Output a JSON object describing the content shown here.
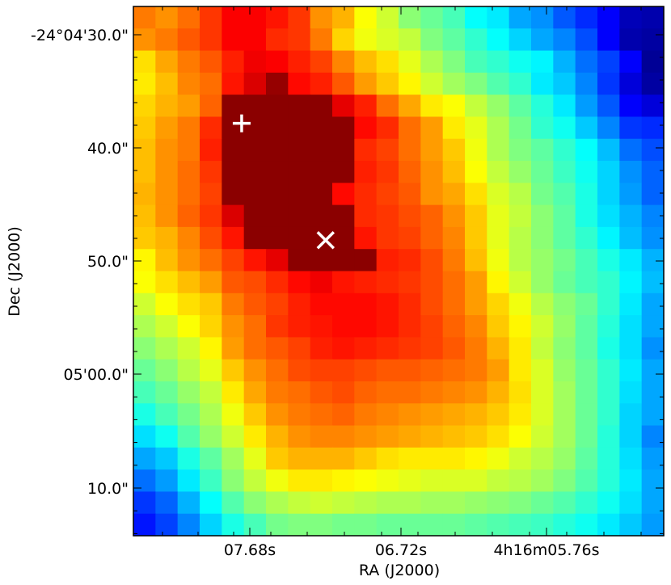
{
  "chart_data": {
    "type": "heatmap",
    "title": "",
    "xlabel": "RA (J2000)",
    "ylabel": "Dec (J2000)",
    "colormap": "jet",
    "colorscale": [
      "#00007f",
      "#0000ff",
      "#007fff",
      "#00ffff",
      "#7fff7f",
      "#ffff00",
      "#ff7f00",
      "#ff0000",
      "#7f0000"
    ],
    "value_range": [
      0,
      9
    ],
    "x_tick_labels": [
      "07.68s",
      "06.72s",
      "4h16m05.76s"
    ],
    "y_tick_labels": [
      "-24°04'30.0\"",
      "40.0\"",
      "50.0\"",
      "05'00.0\"",
      "10.0\""
    ],
    "grid": [
      [
        6.8,
        6.6,
        6.9,
        7.4,
        7.9,
        7.9,
        7.7,
        7.4,
        6.6,
        6.3,
        5.6,
        5.2,
        4.6,
        4.3,
        4.0,
        3.4,
        3.2,
        2.6,
        2.4,
        1.9,
        1.5,
        1.1,
        0.5,
        0.4
      ],
      [
        6.6,
        6.8,
        7.1,
        7.4,
        7.9,
        7.9,
        7.5,
        7.4,
        6.8,
        6.0,
        5.5,
        5.3,
        5.1,
        4.5,
        4.2,
        3.8,
        3.4,
        3.0,
        2.6,
        2.3,
        1.8,
        1.1,
        0.4,
        0.3
      ],
      [
        5.9,
        6.4,
        6.8,
        7.1,
        7.6,
        8.0,
        7.9,
        7.6,
        7.3,
        6.7,
        6.2,
        5.9,
        5.4,
        4.9,
        4.5,
        4.0,
        3.8,
        3.5,
        3.3,
        2.7,
        2.1,
        1.7,
        1.1,
        0.2
      ],
      [
        5.8,
        6.2,
        6.7,
        6.9,
        7.7,
        8.2,
        8.8,
        7.8,
        7.6,
        7.1,
        6.5,
        6.1,
        5.7,
        5.2,
        4.8,
        4.5,
        4.1,
        3.8,
        3.2,
        2.9,
        2.3,
        1.6,
        0.8,
        0.3
      ],
      [
        6.0,
        6.3,
        6.5,
        7.0,
        8.9,
        8.9,
        8.9,
        8.9,
        8.9,
        8.1,
        7.6,
        6.9,
        6.4,
        5.8,
        5.6,
        5.1,
        4.7,
        4.2,
        3.7,
        3.2,
        2.5,
        1.9,
        1.1,
        0.8
      ],
      [
        6.1,
        6.5,
        6.8,
        7.5,
        8.9,
        8.9,
        8.9,
        8.9,
        8.9,
        8.9,
        7.8,
        7.5,
        6.9,
        6.5,
        5.8,
        5.4,
        4.9,
        4.4,
        3.8,
        3.5,
        2.9,
        2.3,
        1.6,
        1.5
      ],
      [
        6.2,
        6.6,
        6.8,
        7.6,
        8.9,
        8.9,
        8.9,
        8.9,
        8.9,
        8.9,
        7.5,
        7.3,
        6.9,
        6.5,
        6.1,
        5.5,
        4.9,
        4.5,
        4.2,
        3.8,
        3.4,
        2.8,
        2.1,
        1.8
      ],
      [
        6.2,
        6.6,
        6.9,
        7.4,
        8.9,
        8.9,
        8.9,
        8.9,
        8.9,
        8.9,
        7.6,
        7.4,
        7.0,
        6.6,
        6.2,
        5.6,
        5.1,
        4.7,
        4.3,
        3.9,
        3.5,
        3.0,
        2.4,
        2.0
      ],
      [
        6.3,
        6.6,
        6.9,
        7.3,
        8.9,
        8.9,
        8.9,
        8.9,
        8.9,
        7.8,
        7.5,
        7.3,
        7.1,
        6.6,
        6.4,
        5.9,
        5.3,
        5.0,
        4.4,
        4.1,
        3.6,
        3.0,
        2.5,
        2.0
      ],
      [
        6.2,
        6.6,
        7.0,
        7.4,
        8.2,
        8.9,
        8.9,
        8.9,
        8.9,
        8.9,
        7.5,
        7.4,
        7.2,
        7.0,
        6.6,
        6.1,
        5.4,
        5.1,
        4.6,
        4.2,
        3.6,
        3.1,
        2.7,
        2.3
      ],
      [
        6.1,
        6.3,
        6.7,
        7.2,
        7.7,
        8.9,
        8.9,
        8.9,
        8.9,
        8.9,
        7.7,
        7.4,
        7.3,
        7.0,
        6.7,
        6.1,
        5.4,
        5.0,
        4.6,
        4.2,
        3.8,
        3.3,
        2.8,
        2.4
      ],
      [
        5.7,
        6.2,
        6.6,
        6.9,
        7.3,
        7.7,
        8.1,
        8.9,
        8.9,
        8.9,
        8.9,
        7.6,
        7.5,
        7.2,
        6.8,
        6.2,
        5.5,
        5.0,
        4.7,
        4.4,
        4.0,
        3.6,
        3.2,
        2.7
      ],
      [
        5.6,
        5.9,
        6.2,
        6.5,
        7.1,
        7.2,
        7.5,
        7.8,
        8.0,
        7.7,
        7.6,
        7.5,
        7.4,
        7.2,
        6.9,
        6.5,
        5.7,
        5.2,
        4.7,
        4.3,
        4.0,
        3.8,
        3.3,
        2.8
      ],
      [
        5.2,
        5.6,
        5.9,
        6.1,
        6.8,
        7.1,
        7.3,
        7.6,
        7.8,
        7.8,
        7.8,
        7.7,
        7.5,
        7.2,
        6.9,
        6.5,
        6.0,
        5.5,
        5.0,
        4.6,
        4.3,
        3.8,
        3.2,
        2.6
      ],
      [
        4.9,
        5.2,
        5.6,
        6.0,
        6.6,
        6.9,
        7.4,
        7.6,
        7.7,
        7.8,
        7.8,
        7.7,
        7.5,
        7.3,
        7.0,
        6.7,
        6.1,
        5.7,
        5.2,
        4.7,
        4.2,
        3.7,
        3.1,
        2.6
      ],
      [
        4.6,
        4.9,
        5.2,
        5.7,
        6.5,
        6.9,
        7.1,
        7.3,
        7.6,
        7.7,
        7.6,
        7.5,
        7.4,
        7.3,
        7.1,
        6.8,
        6.3,
        5.8,
        5.1,
        4.6,
        4.2,
        3.6,
        3.1,
        2.4
      ],
      [
        4.3,
        4.6,
        5.0,
        5.4,
        6.1,
        6.6,
        6.9,
        7.2,
        7.3,
        7.3,
        7.2,
        7.1,
        7.1,
        7.0,
        6.9,
        6.8,
        6.5,
        5.8,
        5.3,
        4.7,
        4.3,
        3.8,
        3.2,
        2.6
      ],
      [
        4.0,
        4.3,
        4.7,
        5.1,
        5.8,
        6.4,
        6.8,
        6.9,
        7.1,
        7.2,
        7.0,
        6.9,
        6.9,
        6.8,
        6.7,
        6.6,
        6.3,
        5.9,
        5.3,
        4.8,
        4.3,
        3.8,
        3.1,
        2.6
      ],
      [
        3.6,
        4.0,
        4.4,
        4.9,
        5.5,
        6.1,
        6.6,
        6.8,
        6.9,
        7.0,
        6.8,
        6.7,
        6.6,
        6.5,
        6.4,
        6.3,
        6.1,
        5.8,
        5.3,
        4.8,
        4.3,
        3.8,
        3.0,
        2.6
      ],
      [
        3.1,
        3.5,
        4.1,
        4.7,
        5.2,
        5.8,
        6.3,
        6.6,
        6.7,
        6.7,
        6.6,
        6.5,
        6.4,
        6.3,
        6.2,
        6.1,
        5.9,
        5.6,
        5.2,
        4.8,
        4.3,
        3.7,
        3.0,
        2.3
      ],
      [
        2.6,
        2.9,
        3.6,
        4.2,
        4.8,
        5.4,
        6.1,
        6.3,
        6.3,
        6.3,
        6.1,
        5.9,
        5.8,
        5.8,
        5.8,
        5.7,
        5.5,
        5.2,
        5.0,
        4.7,
        4.2,
        3.7,
        3.1,
        2.5
      ],
      [
        2.1,
        2.5,
        3.2,
        3.9,
        4.6,
        5.1,
        5.5,
        5.8,
        5.8,
        5.7,
        5.6,
        5.5,
        5.4,
        5.3,
        5.3,
        5.3,
        5.1,
        5.0,
        4.8,
        4.5,
        4.1,
        3.7,
        3.2,
        2.6
      ],
      [
        1.6,
        2.0,
        2.7,
        3.4,
        4.1,
        4.6,
        4.9,
        5.1,
        5.2,
        5.1,
        5.0,
        4.9,
        4.9,
        4.8,
        4.8,
        4.7,
        4.6,
        4.5,
        4.3,
        4.1,
        3.8,
        3.5,
        3.1,
        2.6
      ],
      [
        1.3,
        1.7,
        2.3,
        3.0,
        3.6,
        4.0,
        4.4,
        4.5,
        4.5,
        4.4,
        4.4,
        4.3,
        4.3,
        4.3,
        4.3,
        4.2,
        4.1,
        4.0,
        3.9,
        3.7,
        3.5,
        3.2,
        2.9,
        2.5
      ]
    ],
    "markers": [
      {
        "symbol": "plus",
        "color": "#ffffff",
        "column": 4.9,
        "row": 5.3
      },
      {
        "symbol": "cross",
        "color": "#ffffff",
        "column": 8.7,
        "row": 10.6
      }
    ],
    "grid_lines": false,
    "legend": "none"
  }
}
